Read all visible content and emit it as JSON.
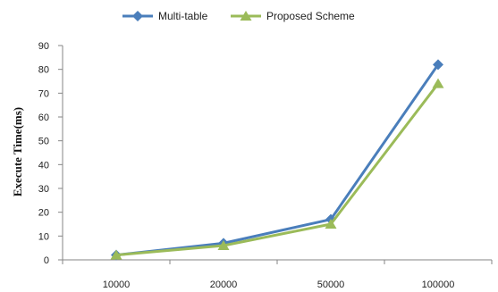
{
  "chart_data": {
    "type": "line",
    "title": "",
    "xlabel": "",
    "ylabel": "Execute Time(ms)",
    "categories": [
      "10000",
      "20000",
      "50000",
      "100000"
    ],
    "ylim": [
      0,
      90
    ],
    "yticks": [
      0,
      10,
      20,
      30,
      40,
      50,
      60,
      70,
      80,
      90
    ],
    "grid": false,
    "legend_position": "top",
    "series": [
      {
        "name": "Multi-table",
        "values": [
          2,
          7,
          17,
          82
        ],
        "color": "#4a7ebb",
        "marker": "diamond"
      },
      {
        "name": "Proposed Scheme",
        "values": [
          2,
          6,
          15,
          74
        ],
        "color": "#9bbb59",
        "marker": "triangle"
      }
    ]
  }
}
